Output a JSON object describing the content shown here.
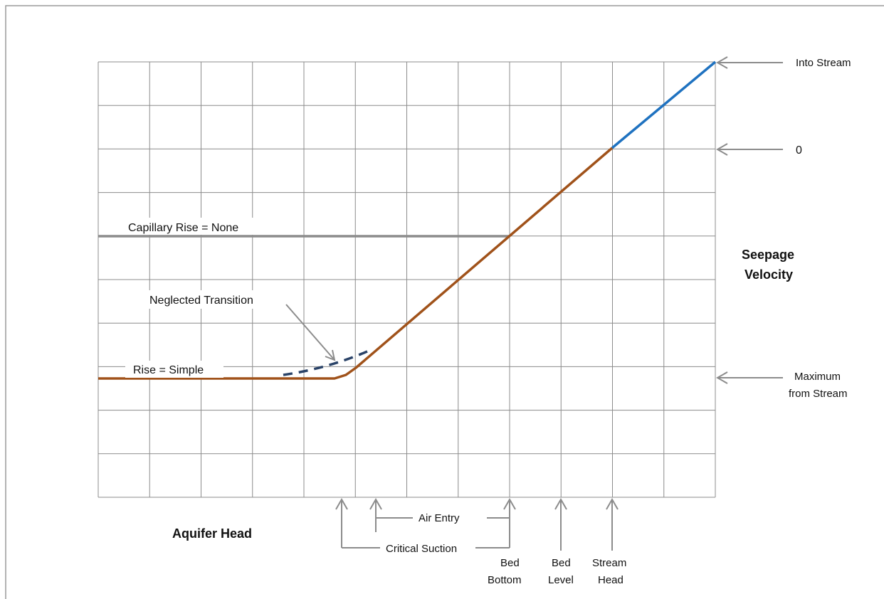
{
  "colors": {
    "grid": "#8c8c8c",
    "frame": "#9a9a9a",
    "arrow": "#8c8c8c",
    "capillary_line": "#8c8c8c",
    "simple_line": "#a0521a",
    "into_stream_line": "#1f72c0",
    "transition_dash": "#2a4368",
    "text": "#111111"
  },
  "labels": {
    "capillary_none": "Capillary Rise = None",
    "rise_simple": "Rise = Simple",
    "neglected_transition": "Neglected Transition",
    "y_axis_line1": "Seepage",
    "y_axis_line2": "Velocity",
    "x_axis": "Aquifer Head",
    "into_stream": "Into Stream",
    "zero": "0",
    "max_line1": "Maximum",
    "max_line2": "from Stream",
    "air_entry": "Air Entry",
    "critical_suction": "Critical Suction",
    "bed_bottom_line1": "Bed",
    "bed_bottom_line2": "Bottom",
    "bed_level_line1": "Bed",
    "bed_level_line2": "Level",
    "stream_head_line1": "Stream",
    "stream_head_line2": "Head"
  },
  "icons": [
    "arrow-left-icon",
    "arrow-up-icon"
  ]
}
